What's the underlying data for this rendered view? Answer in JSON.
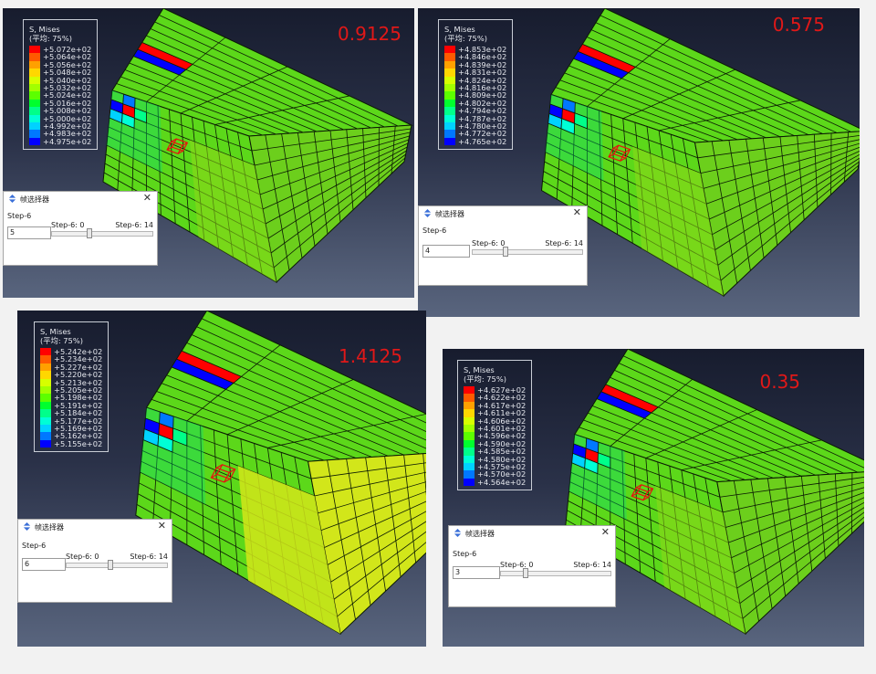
{
  "panels": [
    {
      "id": "p1",
      "scale_factor": "0.9125",
      "legend": {
        "title": "S, Mises",
        "subtitle": "(平均: 75%)",
        "values": [
          "+5.072e+02",
          "+5.064e+02",
          "+5.056e+02",
          "+5.048e+02",
          "+5.040e+02",
          "+5.032e+02",
          "+5.024e+02",
          "+5.016e+02",
          "+5.008e+02",
          "+5.000e+02",
          "+4.992e+02",
          "+4.983e+02",
          "+4.975e+02"
        ]
      },
      "dialog": {
        "title": "帧选择器",
        "step": "Step-6",
        "min_label": "Step-6: 0",
        "max_label": "Step-6: 14",
        "frame": "5",
        "frame_value": 5,
        "frame_max": 14
      }
    },
    {
      "id": "p2",
      "scale_factor": "0.575",
      "legend": {
        "title": "S, Mises",
        "subtitle": "(平均: 75%)",
        "values": [
          "+4.853e+02",
          "+4.846e+02",
          "+4.839e+02",
          "+4.831e+02",
          "+4.824e+02",
          "+4.816e+02",
          "+4.809e+02",
          "+4.802e+02",
          "+4.794e+02",
          "+4.787e+02",
          "+4.780e+02",
          "+4.772e+02",
          "+4.765e+02"
        ]
      },
      "dialog": {
        "title": "帧选择器",
        "step": "Step-6",
        "min_label": "Step-6: 0",
        "max_label": "Step-6: 14",
        "frame": "4",
        "frame_value": 4,
        "frame_max": 14
      }
    },
    {
      "id": "p3",
      "scale_factor": "1.4125",
      "legend": {
        "title": "S, Mises",
        "subtitle": "(平均: 75%)",
        "values": [
          "+5.242e+02",
          "+5.234e+02",
          "+5.227e+02",
          "+5.220e+02",
          "+5.213e+02",
          "+5.205e+02",
          "+5.198e+02",
          "+5.191e+02",
          "+5.184e+02",
          "+5.177e+02",
          "+5.169e+02",
          "+5.162e+02",
          "+5.155e+02"
        ]
      },
      "dialog": {
        "title": "帧选择器",
        "step": "Step-6",
        "min_label": "Step-6: 0",
        "max_label": "Step-6: 14",
        "frame": "6",
        "frame_value": 6,
        "frame_max": 14
      }
    },
    {
      "id": "p4",
      "scale_factor": "0.35",
      "legend": {
        "title": "S, Mises",
        "subtitle": "(平均: 75%)",
        "values": [
          "+4.627e+02",
          "+4.622e+02",
          "+4.617e+02",
          "+4.611e+02",
          "+4.606e+02",
          "+4.601e+02",
          "+4.596e+02",
          "+4.590e+02",
          "+4.585e+02",
          "+4.580e+02",
          "+4.575e+02",
          "+4.570e+02",
          "+4.564e+02"
        ]
      },
      "dialog": {
        "title": "帧选择器",
        "step": "Step-6",
        "min_label": "Step-6: 0",
        "max_label": "Step-6: 14",
        "frame": "3",
        "frame_value": 3,
        "frame_max": 14
      }
    }
  ],
  "colors": {
    "contour": [
      "#ff0000",
      "#ff5a00",
      "#ffa000",
      "#ffd700",
      "#d7ff00",
      "#a2ff00",
      "#5cff00",
      "#00ff2e",
      "#00ff8a",
      "#00ffd6",
      "#00d2ff",
      "#0078ff",
      "#0000ff"
    ],
    "scale_text": "#e01818",
    "model_green": "#5cd81a",
    "model_yellow": "#d2e61a",
    "edge_line": "#0b1a04"
  }
}
